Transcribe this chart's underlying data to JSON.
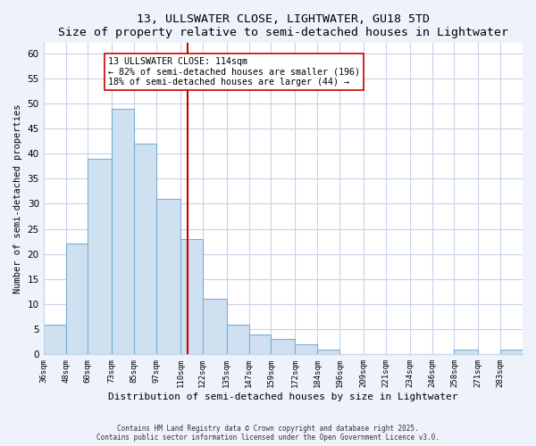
{
  "title": "13, ULLSWATER CLOSE, LIGHTWATER, GU18 5TD",
  "subtitle": "Size of property relative to semi-detached houses in Lightwater",
  "xlabel": "Distribution of semi-detached houses by size in Lightwater",
  "ylabel": "Number of semi-detached properties",
  "bin_labels": [
    "36sqm",
    "48sqm",
    "60sqm",
    "73sqm",
    "85sqm",
    "97sqm",
    "110sqm",
    "122sqm",
    "135sqm",
    "147sqm",
    "159sqm",
    "172sqm",
    "184sqm",
    "196sqm",
    "209sqm",
    "221sqm",
    "234sqm",
    "246sqm",
    "258sqm",
    "271sqm",
    "283sqm"
  ],
  "bin_edges": [
    36,
    48,
    60,
    73,
    85,
    97,
    110,
    122,
    135,
    147,
    159,
    172,
    184,
    196,
    209,
    221,
    234,
    246,
    258,
    271,
    283,
    295
  ],
  "counts": [
    6,
    22,
    39,
    49,
    42,
    31,
    23,
    11,
    6,
    4,
    3,
    2,
    1,
    0,
    0,
    0,
    0,
    0,
    1,
    0,
    1
  ],
  "bar_color": "#cfe0f0",
  "bar_edge_color": "#7bafd4",
  "highlight_value": 114,
  "highlight_line_color": "#cc0000",
  "annotation_title": "13 ULLSWATER CLOSE: 114sqm",
  "annotation_line1": "← 82% of semi-detached houses are smaller (196)",
  "annotation_line2": "18% of semi-detached houses are larger (44) →",
  "annotation_box_edge": "#cc0000",
  "ylim": [
    0,
    62
  ],
  "yticks": [
    0,
    5,
    10,
    15,
    20,
    25,
    30,
    35,
    40,
    45,
    50,
    55,
    60
  ],
  "footer1": "Contains HM Land Registry data © Crown copyright and database right 2025.",
  "footer2": "Contains public sector information licensed under the Open Government Licence v3.0.",
  "background_color": "#eef2fa",
  "plot_background_color": "#ffffff"
}
